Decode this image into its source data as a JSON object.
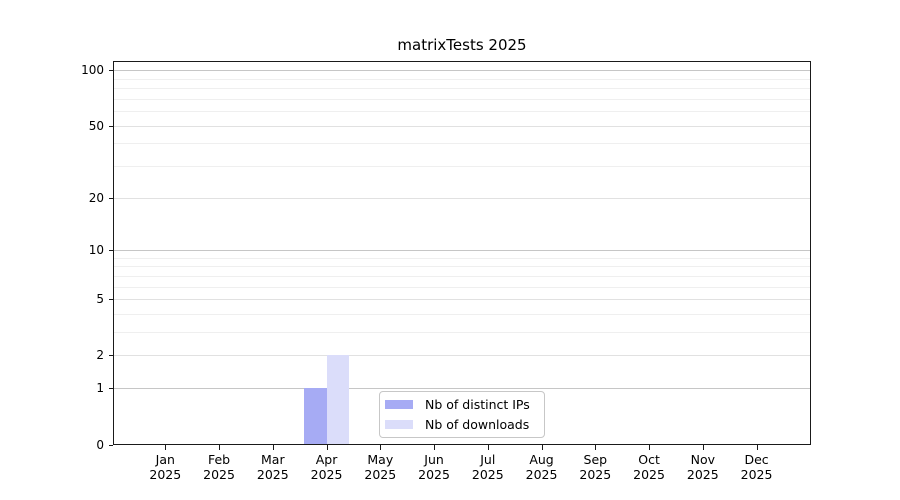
{
  "title": "matrixTests 2025",
  "chart_data": {
    "type": "bar",
    "title": "matrixTests 2025",
    "categories": [
      "Jan",
      "Feb",
      "Mar",
      "Apr",
      "May",
      "Jun",
      "Jul",
      "Aug",
      "Sep",
      "Oct",
      "Nov",
      "Dec"
    ],
    "x_sublabel": "2025",
    "series": [
      {
        "name": "Nb of distinct IPs",
        "color": "#a6abf4",
        "values": [
          0,
          0,
          0,
          1,
          0,
          0,
          0,
          0,
          0,
          0,
          0,
          0
        ]
      },
      {
        "name": "Nb of downloads",
        "color": "#dbddfa",
        "values": [
          0,
          0,
          0,
          2,
          0,
          0,
          0,
          0,
          0,
          0,
          0,
          0
        ]
      }
    ],
    "yscale": "log1p",
    "ylim": [
      0,
      112
    ],
    "y_major_ticks": [
      0,
      1,
      2,
      5,
      10,
      20,
      50,
      100
    ],
    "y_strong_gridlines": [
      1,
      10,
      100
    ],
    "y_weak_gridlines": [
      2,
      5,
      20,
      50
    ],
    "y_minor_gridlines": [
      3,
      4,
      6,
      7,
      8,
      9,
      30,
      40,
      60,
      70,
      80,
      90
    ],
    "grid": "horizontal",
    "legend_position": "inside-bottom-center"
  },
  "colors": {
    "background": "#ffffff",
    "axis": "#1a1a1a",
    "grid_strong": "#c6c6c6",
    "grid_weak": "#e1e1e1",
    "grid_minor": "#efefef",
    "legend_border": "#c7c7c7",
    "text": "#000000"
  }
}
